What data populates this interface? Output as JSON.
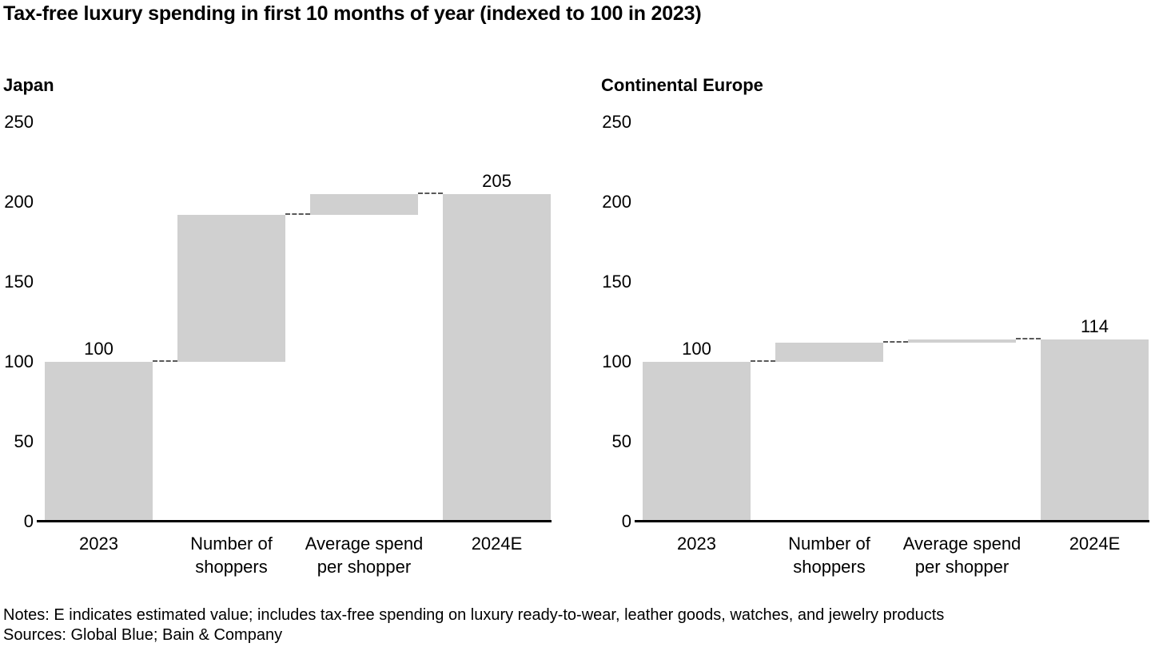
{
  "page": {
    "title": "Tax-free luxury spending in first 10 months of year (indexed to 100 in 2023)",
    "notes": "Notes: E indicates estimated value; includes tax-free spending on luxury ready-to-wear, leather goods, watches, and jewelry products",
    "sources": "Sources: Global Blue; Bain & Company"
  },
  "colors": {
    "bar": "#d0d0d0",
    "axis": "#000000",
    "connector": "#595959",
    "text": "#000000"
  },
  "chart_data": [
    {
      "type": "bar",
      "subtype": "waterfall",
      "title": "Japan",
      "xlabel": "",
      "ylabel": "",
      "ylim": [
        0,
        250
      ],
      "yticks": [
        250,
        200,
        150,
        100,
        50,
        0
      ],
      "grid": false,
      "legend": false,
      "categories": [
        [
          "2023"
        ],
        [
          "Number of",
          "shoppers"
        ],
        [
          "Average spend",
          "per shopper"
        ],
        [
          "2024E"
        ]
      ],
      "bars": [
        {
          "category": "2023",
          "start": 0,
          "end": 100,
          "label": "100"
        },
        {
          "category": "Number of shoppers",
          "start": 100,
          "end": 192,
          "label": ""
        },
        {
          "category": "Average spend per shopper",
          "start": 192,
          "end": 205,
          "label": ""
        },
        {
          "category": "2024E",
          "start": 0,
          "end": 205,
          "label": "205"
        }
      ]
    },
    {
      "type": "bar",
      "subtype": "waterfall",
      "title": "Continental Europe",
      "xlabel": "",
      "ylabel": "",
      "ylim": [
        0,
        250
      ],
      "yticks": [
        250,
        200,
        150,
        100,
        50,
        0
      ],
      "grid": false,
      "legend": false,
      "categories": [
        [
          "2023"
        ],
        [
          "Number of",
          "shoppers"
        ],
        [
          "Average spend",
          "per shopper"
        ],
        [
          "2024E"
        ]
      ],
      "bars": [
        {
          "category": "2023",
          "start": 0,
          "end": 100,
          "label": "100"
        },
        {
          "category": "Number of shoppers",
          "start": 100,
          "end": 112,
          "label": ""
        },
        {
          "category": "Average spend per shopper",
          "start": 112,
          "end": 114,
          "label": ""
        },
        {
          "category": "2024E",
          "start": 0,
          "end": 114,
          "label": "114"
        }
      ]
    }
  ]
}
